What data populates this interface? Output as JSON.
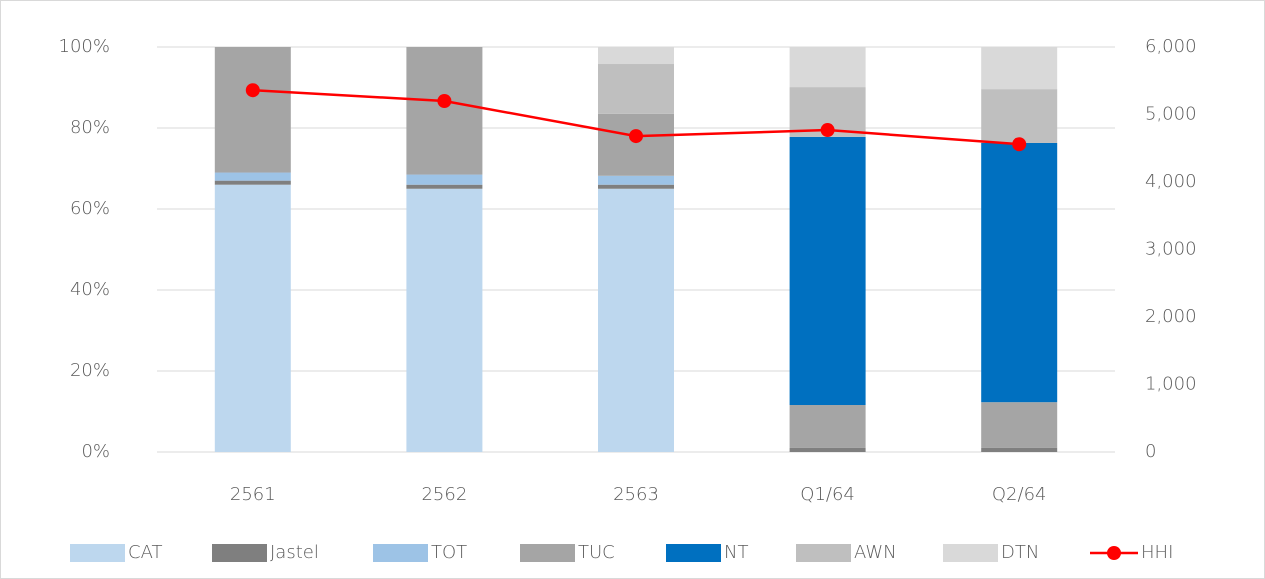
{
  "chart_data": {
    "type": "bar",
    "stacked": true,
    "categories": [
      "2561",
      "2562",
      "2563",
      "Q1/64",
      "Q2/64"
    ],
    "series": [
      {
        "name": "CAT",
        "color": "#bdd7ee",
        "values": [
          66,
          65,
          65,
          0,
          0
        ]
      },
      {
        "name": "Jastel",
        "color": "#7f7f7f",
        "values": [
          1,
          1,
          1,
          1,
          1
        ]
      },
      {
        "name": "TOT",
        "color": "#9dc3e6",
        "values": [
          2,
          2.5,
          2.2,
          0,
          0
        ]
      },
      {
        "name": "TUC",
        "color": "#a5a5a5",
        "values": [
          31,
          31.5,
          15.3,
          10.6,
          11.3
        ]
      },
      {
        "name": "NT",
        "color": "#0070c0",
        "values": [
          0,
          0,
          0,
          66.2,
          64
        ]
      },
      {
        "name": "AWN",
        "color": "#bfbfbf",
        "values": [
          0,
          0,
          12.3,
          12.3,
          13.3
        ]
      },
      {
        "name": "DTN",
        "color": "#d9d9d9",
        "values": [
          0,
          0,
          4.2,
          9.9,
          10.4
        ]
      },
      {
        "name": "HHI",
        "color": "#ff0000",
        "type": "line",
        "axis": "y2",
        "values": [
          5360,
          5200,
          4680,
          4770,
          4560
        ]
      }
    ],
    "ylim": [
      0,
      100
    ],
    "yticks": [
      {
        "value": 0,
        "label": "0%"
      },
      {
        "value": 20,
        "label": "20%"
      },
      {
        "value": 40,
        "label": "40%"
      },
      {
        "value": 60,
        "label": "60%"
      },
      {
        "value": 80,
        "label": "80%"
      },
      {
        "value": 100,
        "label": "100%"
      }
    ],
    "y2lim": [
      0,
      6000
    ],
    "y2ticks": [
      0,
      {
        "value": 1000,
        "label": "1,000"
      },
      {
        "value": 2000,
        "label": "2,000"
      },
      {
        "value": 3000,
        "label": "3,000"
      },
      {
        "value": 4000,
        "label": "4,000"
      },
      {
        "value": 5000,
        "label": "5,000"
      },
      {
        "value": 6000,
        "label": "6,000"
      }
    ],
    "grid": true,
    "legend": "bottom"
  }
}
